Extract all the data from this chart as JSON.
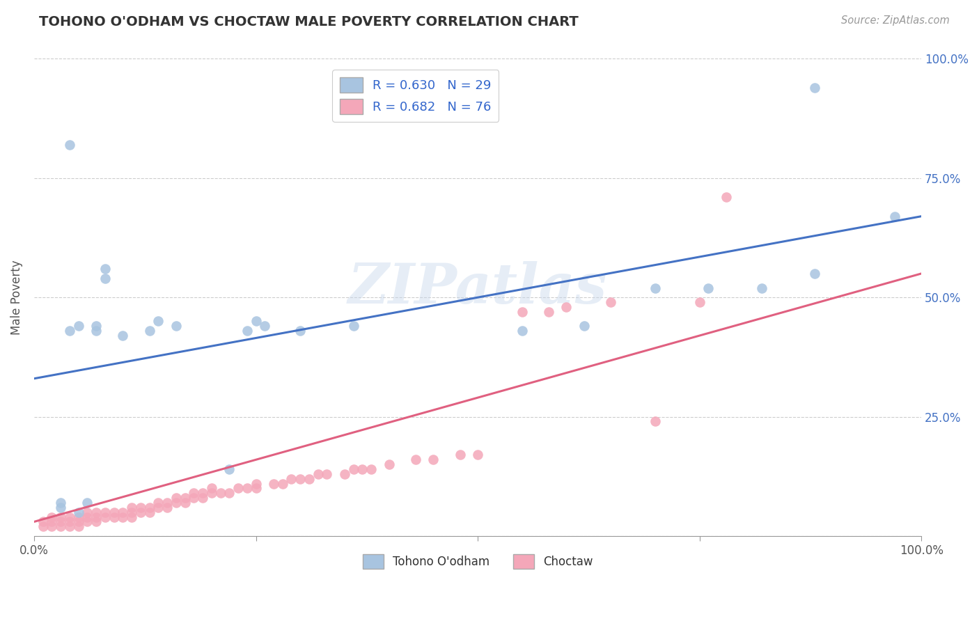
{
  "title": "TOHONO O'ODHAM VS CHOCTAW MALE POVERTY CORRELATION CHART",
  "source_text": "Source: ZipAtlas.com",
  "ylabel": "Male Poverty",
  "xlim": [
    0,
    1
  ],
  "ylim": [
    0,
    1
  ],
  "xticks": [
    0.0,
    0.25,
    0.5,
    0.75,
    1.0
  ],
  "yticks": [
    0.0,
    0.25,
    0.5,
    0.75,
    1.0
  ],
  "xticklabels": [
    "0.0%",
    "",
    "",
    "",
    "100.0%"
  ],
  "yticklabels_right": [
    "100.0%",
    "75.0%",
    "50.0%",
    "25.0%",
    ""
  ],
  "blue_color": "#A8C4E0",
  "blue_line_color": "#4472C4",
  "pink_color": "#F4A7B9",
  "pink_line_color": "#E06080",
  "legend_blue_label": "R = 0.630   N = 29",
  "legend_pink_label": "R = 0.682   N = 76",
  "legend_label_blue": "Tohono O'odham",
  "legend_label_pink": "Choctaw",
  "watermark": "ZIPatlas",
  "background_color": "#ffffff",
  "grid_color": "#cccccc",
  "blue_intercept": 0.33,
  "blue_slope": 0.34,
  "pink_intercept": 0.03,
  "pink_slope": 0.52,
  "blue_dots": [
    [
      0.04,
      0.82
    ],
    [
      0.88,
      0.94
    ],
    [
      0.08,
      0.54
    ],
    [
      0.08,
      0.56
    ],
    [
      0.05,
      0.05
    ],
    [
      0.06,
      0.07
    ],
    [
      0.1,
      0.42
    ],
    [
      0.13,
      0.43
    ],
    [
      0.14,
      0.45
    ],
    [
      0.16,
      0.44
    ],
    [
      0.22,
      0.14
    ],
    [
      0.24,
      0.43
    ],
    [
      0.25,
      0.45
    ],
    [
      0.26,
      0.44
    ],
    [
      0.3,
      0.43
    ],
    [
      0.36,
      0.44
    ],
    [
      0.55,
      0.43
    ],
    [
      0.62,
      0.44
    ],
    [
      0.7,
      0.52
    ],
    [
      0.76,
      0.52
    ],
    [
      0.82,
      0.52
    ],
    [
      0.88,
      0.55
    ],
    [
      0.97,
      0.67
    ],
    [
      0.04,
      0.43
    ],
    [
      0.05,
      0.44
    ],
    [
      0.07,
      0.43
    ],
    [
      0.07,
      0.44
    ],
    [
      0.03,
      0.06
    ],
    [
      0.03,
      0.07
    ]
  ],
  "pink_dots": [
    [
      0.01,
      0.02
    ],
    [
      0.01,
      0.03
    ],
    [
      0.02,
      0.02
    ],
    [
      0.02,
      0.03
    ],
    [
      0.02,
      0.04
    ],
    [
      0.03,
      0.02
    ],
    [
      0.03,
      0.03
    ],
    [
      0.03,
      0.04
    ],
    [
      0.04,
      0.02
    ],
    [
      0.04,
      0.03
    ],
    [
      0.04,
      0.04
    ],
    [
      0.05,
      0.02
    ],
    [
      0.05,
      0.03
    ],
    [
      0.05,
      0.04
    ],
    [
      0.06,
      0.03
    ],
    [
      0.06,
      0.04
    ],
    [
      0.06,
      0.05
    ],
    [
      0.07,
      0.03
    ],
    [
      0.07,
      0.04
    ],
    [
      0.07,
      0.05
    ],
    [
      0.08,
      0.04
    ],
    [
      0.08,
      0.05
    ],
    [
      0.09,
      0.04
    ],
    [
      0.09,
      0.05
    ],
    [
      0.1,
      0.04
    ],
    [
      0.1,
      0.05
    ],
    [
      0.11,
      0.04
    ],
    [
      0.11,
      0.05
    ],
    [
      0.11,
      0.06
    ],
    [
      0.12,
      0.05
    ],
    [
      0.12,
      0.06
    ],
    [
      0.13,
      0.05
    ],
    [
      0.13,
      0.06
    ],
    [
      0.14,
      0.06
    ],
    [
      0.14,
      0.07
    ],
    [
      0.15,
      0.06
    ],
    [
      0.15,
      0.07
    ],
    [
      0.16,
      0.07
    ],
    [
      0.16,
      0.08
    ],
    [
      0.17,
      0.07
    ],
    [
      0.17,
      0.08
    ],
    [
      0.18,
      0.08
    ],
    [
      0.18,
      0.09
    ],
    [
      0.19,
      0.08
    ],
    [
      0.19,
      0.09
    ],
    [
      0.2,
      0.09
    ],
    [
      0.2,
      0.1
    ],
    [
      0.21,
      0.09
    ],
    [
      0.22,
      0.09
    ],
    [
      0.23,
      0.1
    ],
    [
      0.24,
      0.1
    ],
    [
      0.25,
      0.1
    ],
    [
      0.25,
      0.11
    ],
    [
      0.27,
      0.11
    ],
    [
      0.28,
      0.11
    ],
    [
      0.29,
      0.12
    ],
    [
      0.3,
      0.12
    ],
    [
      0.31,
      0.12
    ],
    [
      0.32,
      0.13
    ],
    [
      0.33,
      0.13
    ],
    [
      0.35,
      0.13
    ],
    [
      0.36,
      0.14
    ],
    [
      0.37,
      0.14
    ],
    [
      0.38,
      0.14
    ],
    [
      0.4,
      0.15
    ],
    [
      0.43,
      0.16
    ],
    [
      0.45,
      0.16
    ],
    [
      0.48,
      0.17
    ],
    [
      0.5,
      0.17
    ],
    [
      0.55,
      0.47
    ],
    [
      0.58,
      0.47
    ],
    [
      0.6,
      0.48
    ],
    [
      0.65,
      0.49
    ],
    [
      0.7,
      0.24
    ],
    [
      0.75,
      0.49
    ],
    [
      0.78,
      0.71
    ]
  ]
}
